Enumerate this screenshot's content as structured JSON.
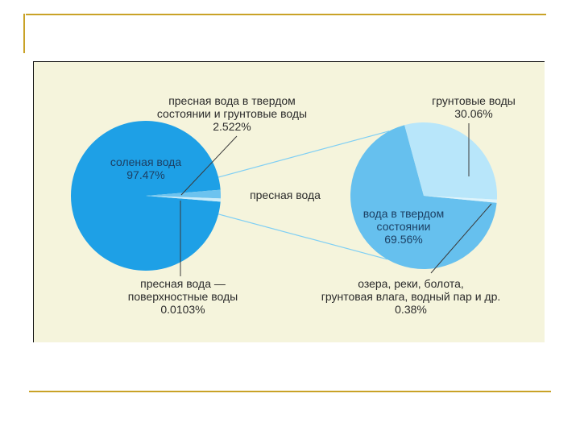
{
  "colors": {
    "salt_water": "#1ea0e6",
    "fresh_frozen": "#6cc3ef",
    "fresh_surface": "#c9ecfb",
    "groundwater": "#b8e6fa",
    "frozen_water": "#66c0ee",
    "other_sources": "#ddf4fd",
    "connector": "#7fcff4",
    "leader": "#3a3a3a",
    "panel_bg": "#f5f4dc",
    "accent_lines": "#c9a227"
  },
  "chart_data": [
    {
      "type": "pie",
      "slices": [
        {
          "label_lines": [
            "соленая вода",
            "97.47%"
          ],
          "value": 97.47
        },
        {
          "label_lines": [
            "пресная вода в твердом",
            "состоянии и грунтовые воды",
            "2.522%"
          ],
          "value": 2.522
        },
        {
          "label_lines": [
            "пресная вода —",
            "поверхностные воды",
            "0.0103%"
          ],
          "value": 0.0103
        }
      ]
    },
    {
      "type": "pie",
      "title": "пресная вода",
      "slices": [
        {
          "label_lines": [
            "вода в твердом",
            "состоянии",
            "69.56%"
          ],
          "value": 69.56
        },
        {
          "label_lines": [
            "грунтовые воды",
            "30.06%"
          ],
          "value": 30.06
        },
        {
          "label_lines": [
            "озера, реки, болота,",
            "грунтовая влага, водный пар и др.",
            "0.38%"
          ],
          "value": 0.38
        }
      ]
    }
  ]
}
